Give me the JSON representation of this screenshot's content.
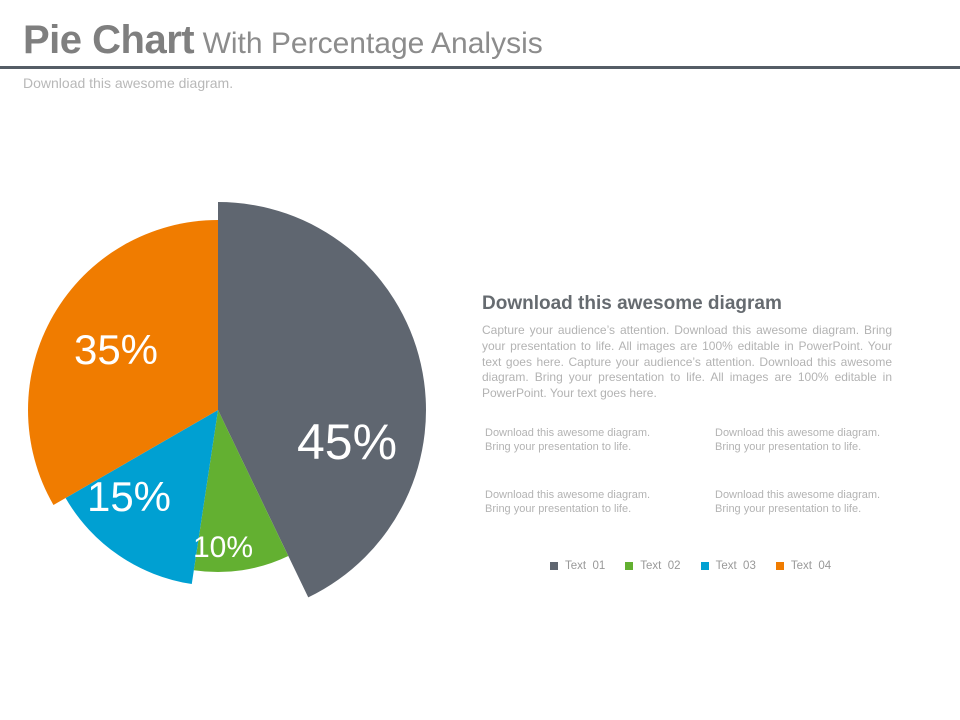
{
  "header": {
    "title_main": "Pie Chart",
    "title_sub": "With Percentage Analysis",
    "subtitle": "Download this awesome diagram."
  },
  "chart_data": {
    "type": "pie",
    "title": "",
    "slices": [
      {
        "label": "Text  01",
        "value": 45,
        "value_label": "45%",
        "color": "#5f6670"
      },
      {
        "label": "Text  02",
        "value": 10,
        "value_label": "10%",
        "color": "#63b031"
      },
      {
        "label": "Text  03",
        "value": 15,
        "value_label": "15%",
        "color": "#00a0d2"
      },
      {
        "label": "Text  04",
        "value": 35,
        "value_label": "35%",
        "color": "#f07c00"
      }
    ],
    "legend_position": "bottom-right"
  },
  "panel": {
    "heading": "Download  this awesome diagram",
    "body": "Capture your audience’s attention. Download this awesome diagram. Bring your presentation to life. All images are 100% editable in PowerPoint. Your text goes here. Capture your audience’s attention. Download this awesome diagram. Bring your presentation to life. All images are 100% editable in PowerPoint. Your text goes here."
  },
  "notes": [
    {
      "line1": "Download this awesome diagram.",
      "line2": "Bring your presentation to life."
    },
    {
      "line1": "Download this awesome diagram.",
      "line2": "Bring your presentation to life."
    },
    {
      "line1": "Download this awesome diagram.",
      "line2": "Bring your presentation to life."
    },
    {
      "line1": "Download this awesome diagram.",
      "line2": "Bring your presentation to life."
    }
  ]
}
